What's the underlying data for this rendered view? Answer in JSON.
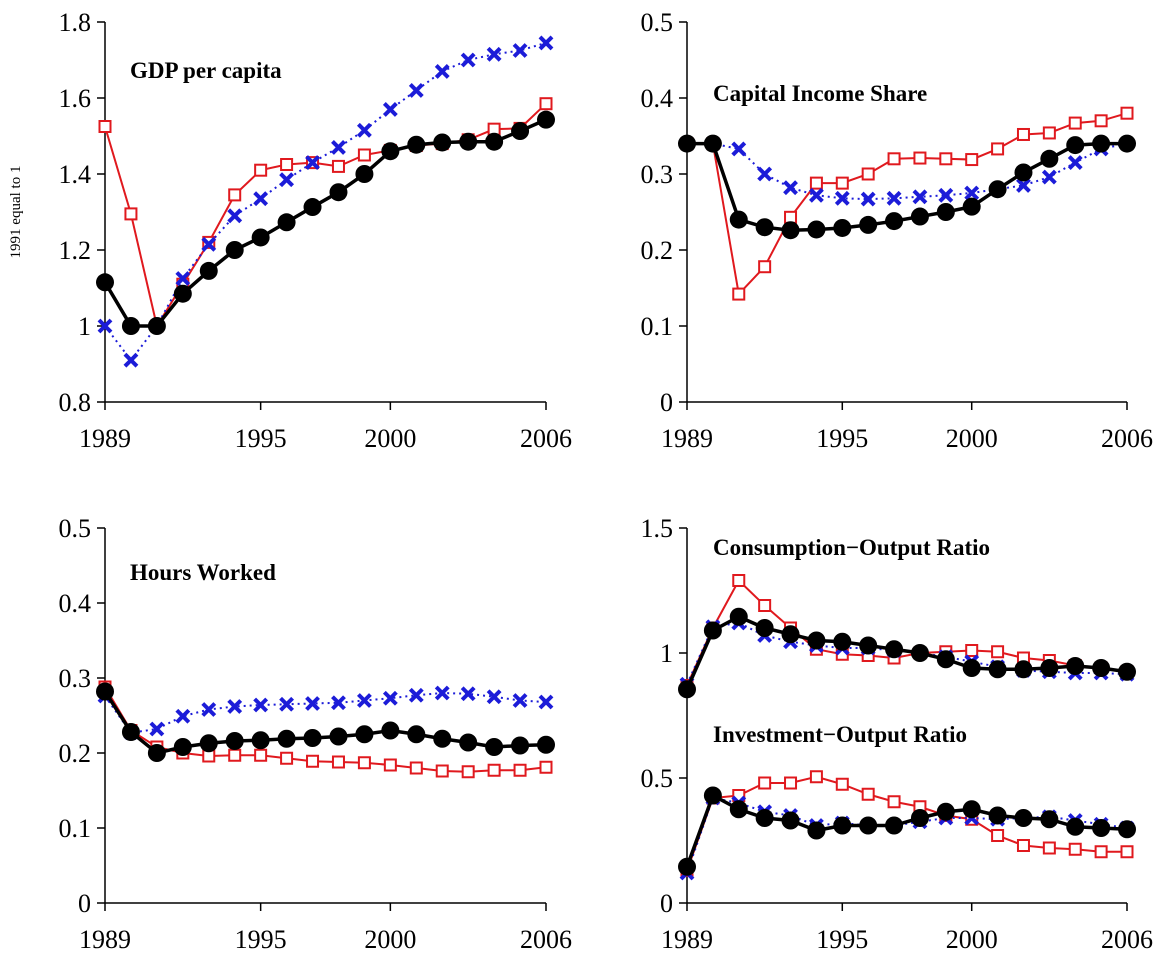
{
  "chart_data": [
    {
      "type": "line",
      "title": "GDP per capita",
      "ylabel": "1991 equal to 1",
      "x": [
        1989,
        1990,
        1991,
        1992,
        1993,
        1994,
        1995,
        1996,
        1997,
        1998,
        1999,
        2000,
        2001,
        2002,
        2003,
        2004,
        2005,
        2006
      ],
      "xlim": [
        1989,
        2006
      ],
      "xticks": [
        1989,
        1995,
        2000,
        2006
      ],
      "ylim": [
        0.8,
        1.8
      ],
      "yticks": [
        0.8,
        1,
        1.2,
        1.4,
        1.6,
        1.8
      ],
      "series": [
        {
          "color": "#e0191e",
          "marker": "square",
          "dash": "solid",
          "values": [
            1.525,
            1.295,
            1.0,
            1.11,
            1.22,
            1.345,
            1.41,
            1.425,
            1.43,
            1.42,
            1.45,
            1.462,
            1.475,
            1.48,
            1.49,
            1.518,
            1.52,
            1.585
          ]
        },
        {
          "color": "#1c1cd8",
          "marker": "x",
          "dash": "dotted",
          "values": [
            1.0,
            0.91,
            1.0,
            1.125,
            1.215,
            1.29,
            1.335,
            1.385,
            1.43,
            1.47,
            1.515,
            1.57,
            1.62,
            1.67,
            1.7,
            1.715,
            1.725,
            1.745
          ]
        },
        {
          "color": "#000000",
          "marker": "circle",
          "dash": "solid",
          "values": [
            1.115,
            1.0,
            1.0,
            1.085,
            1.145,
            1.2,
            1.233,
            1.273,
            1.313,
            1.352,
            1.4,
            1.46,
            1.477,
            1.483,
            1.485,
            1.485,
            1.513,
            1.543
          ]
        }
      ]
    },
    {
      "type": "line",
      "title": "Capital Income Share",
      "x": [
        1989,
        1990,
        1991,
        1992,
        1993,
        1994,
        1995,
        1996,
        1997,
        1998,
        1999,
        2000,
        2001,
        2002,
        2003,
        2004,
        2005,
        2006
      ],
      "xlim": [
        1989,
        2006
      ],
      "xticks": [
        1989,
        1995,
        2000,
        2006
      ],
      "ylim": [
        0,
        0.5
      ],
      "yticks": [
        0,
        0.1,
        0.2,
        0.3,
        0.4,
        0.5
      ],
      "series": [
        {
          "color": "#e0191e",
          "marker": "square",
          "dash": "solid",
          "values": [
            0.34,
            0.34,
            0.142,
            0.178,
            0.243,
            0.288,
            0.288,
            0.3,
            0.32,
            0.321,
            0.32,
            0.319,
            0.333,
            0.352,
            0.354,
            0.367,
            0.37,
            0.38
          ]
        },
        {
          "color": "#1c1cd8",
          "marker": "x",
          "dash": "dotted",
          "values": [
            0.34,
            0.34,
            0.333,
            0.3,
            0.282,
            0.272,
            0.268,
            0.267,
            0.268,
            0.27,
            0.272,
            0.275,
            0.28,
            0.285,
            0.296,
            0.315,
            0.333,
            0.34
          ]
        },
        {
          "color": "#000000",
          "marker": "circle",
          "dash": "solid",
          "values": [
            0.34,
            0.34,
            0.24,
            0.23,
            0.226,
            0.227,
            0.229,
            0.233,
            0.238,
            0.244,
            0.25,
            0.257,
            0.28,
            0.302,
            0.32,
            0.338,
            0.34,
            0.34
          ]
        }
      ]
    },
    {
      "type": "line",
      "title": "Hours Worked",
      "x": [
        1989,
        1990,
        1991,
        1992,
        1993,
        1994,
        1995,
        1996,
        1997,
        1998,
        1999,
        2000,
        2001,
        2002,
        2003,
        2004,
        2005,
        2006
      ],
      "xlim": [
        1989,
        2006
      ],
      "xticks": [
        1989,
        1995,
        2000,
        2006
      ],
      "ylim": [
        0,
        0.5
      ],
      "yticks": [
        0,
        0.1,
        0.2,
        0.3,
        0.4,
        0.5
      ],
      "series": [
        {
          "color": "#e0191e",
          "marker": "square",
          "dash": "solid",
          "values": [
            0.288,
            0.23,
            0.208,
            0.2,
            0.196,
            0.197,
            0.197,
            0.193,
            0.189,
            0.188,
            0.187,
            0.184,
            0.18,
            0.176,
            0.175,
            0.177,
            0.177,
            0.181
          ]
        },
        {
          "color": "#1c1cd8",
          "marker": "x",
          "dash": "dotted",
          "values": [
            0.276,
            0.227,
            0.232,
            0.249,
            0.258,
            0.262,
            0.264,
            0.265,
            0.266,
            0.267,
            0.27,
            0.273,
            0.277,
            0.28,
            0.279,
            0.275,
            0.27,
            0.268
          ]
        },
        {
          "color": "#000000",
          "marker": "circle",
          "dash": "solid",
          "values": [
            0.282,
            0.228,
            0.2,
            0.208,
            0.213,
            0.216,
            0.217,
            0.219,
            0.22,
            0.222,
            0.225,
            0.23,
            0.225,
            0.219,
            0.214,
            0.208,
            0.21,
            0.211
          ]
        }
      ]
    },
    {
      "type": "line",
      "title": "Consumption−Output Ratio",
      "annotations": [
        "Investment−Output Ratio"
      ],
      "x": [
        1989,
        1990,
        1991,
        1992,
        1993,
        1994,
        1995,
        1996,
        1997,
        1998,
        1999,
        2000,
        2001,
        2002,
        2003,
        2004,
        2005,
        2006
      ],
      "xlim": [
        1989,
        2006
      ],
      "xticks": [
        1989,
        1995,
        2000,
        2006
      ],
      "ylim": [
        0,
        1.5
      ],
      "yticks": [
        0,
        0.5,
        1,
        1.5
      ],
      "series": [
        {
          "color": "#e0191e",
          "marker": "square",
          "dash": "solid",
          "values": [
            0.87,
            1.1,
            1.29,
            1.19,
            1.1,
            1.015,
            0.995,
            0.99,
            0.98,
            1.0,
            1.005,
            1.01,
            1.005,
            0.98,
            0.97,
            0.95,
            0.94,
            0.925
          ]
        },
        {
          "color": "#1c1cd8",
          "marker": "x",
          "dash": "dotted",
          "values": [
            0.875,
            1.105,
            1.12,
            1.07,
            1.045,
            1.03,
            1.02,
            1.02,
            1.01,
            1.0,
            0.985,
            0.965,
            0.945,
            0.93,
            0.925,
            0.92,
            0.92,
            0.915
          ]
        },
        {
          "color": "#000000",
          "marker": "circle",
          "dash": "solid",
          "values": [
            0.855,
            1.09,
            1.145,
            1.1,
            1.075,
            1.05,
            1.045,
            1.03,
            1.015,
            1.0,
            0.975,
            0.94,
            0.935,
            0.935,
            0.94,
            0.948,
            0.94,
            0.925
          ]
        },
        {
          "color": "#e0191e",
          "marker": "square",
          "dash": "solid",
          "values": [
            0.13,
            0.42,
            0.43,
            0.48,
            0.48,
            0.505,
            0.475,
            0.435,
            0.405,
            0.385,
            0.35,
            0.335,
            0.27,
            0.23,
            0.22,
            0.215,
            0.205,
            0.205
          ]
        },
        {
          "color": "#1c1cd8",
          "marker": "x",
          "dash": "dotted",
          "values": [
            0.12,
            0.42,
            0.4,
            0.365,
            0.35,
            0.31,
            0.32,
            0.31,
            0.31,
            0.325,
            0.34,
            0.34,
            0.335,
            0.34,
            0.345,
            0.33,
            0.315,
            0.3
          ]
        },
        {
          "color": "#000000",
          "marker": "circle",
          "dash": "solid",
          "values": [
            0.145,
            0.43,
            0.375,
            0.34,
            0.33,
            0.29,
            0.31,
            0.31,
            0.31,
            0.34,
            0.365,
            0.375,
            0.35,
            0.34,
            0.335,
            0.305,
            0.3,
            0.295
          ]
        }
      ]
    }
  ]
}
